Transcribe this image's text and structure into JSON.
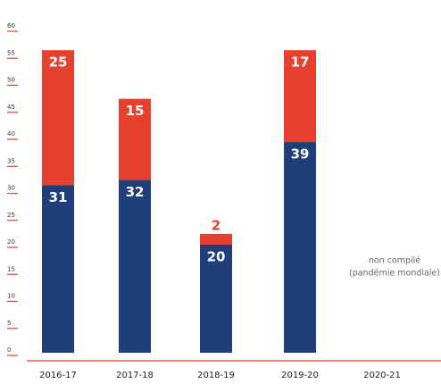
{
  "chart_data": {
    "type": "bar",
    "stacked": true,
    "categories": [
      "2016-17",
      "2017-18",
      "2018-19",
      "2019-20",
      "2020-21"
    ],
    "series": [
      {
        "name": "bottom",
        "color": "#1e3f7a",
        "values": [
          31,
          32,
          20,
          39,
          null
        ]
      },
      {
        "name": "top",
        "color": "#e6412e",
        "values": [
          25,
          15,
          2,
          17,
          null
        ]
      }
    ],
    "ylim": [
      0,
      60
    ],
    "yticks": [
      0,
      5,
      10,
      15,
      20,
      25,
      30,
      35,
      40,
      45,
      50,
      55,
      60
    ],
    "annotation": [
      "non compilé",
      "(pandémie mondiale)"
    ]
  }
}
